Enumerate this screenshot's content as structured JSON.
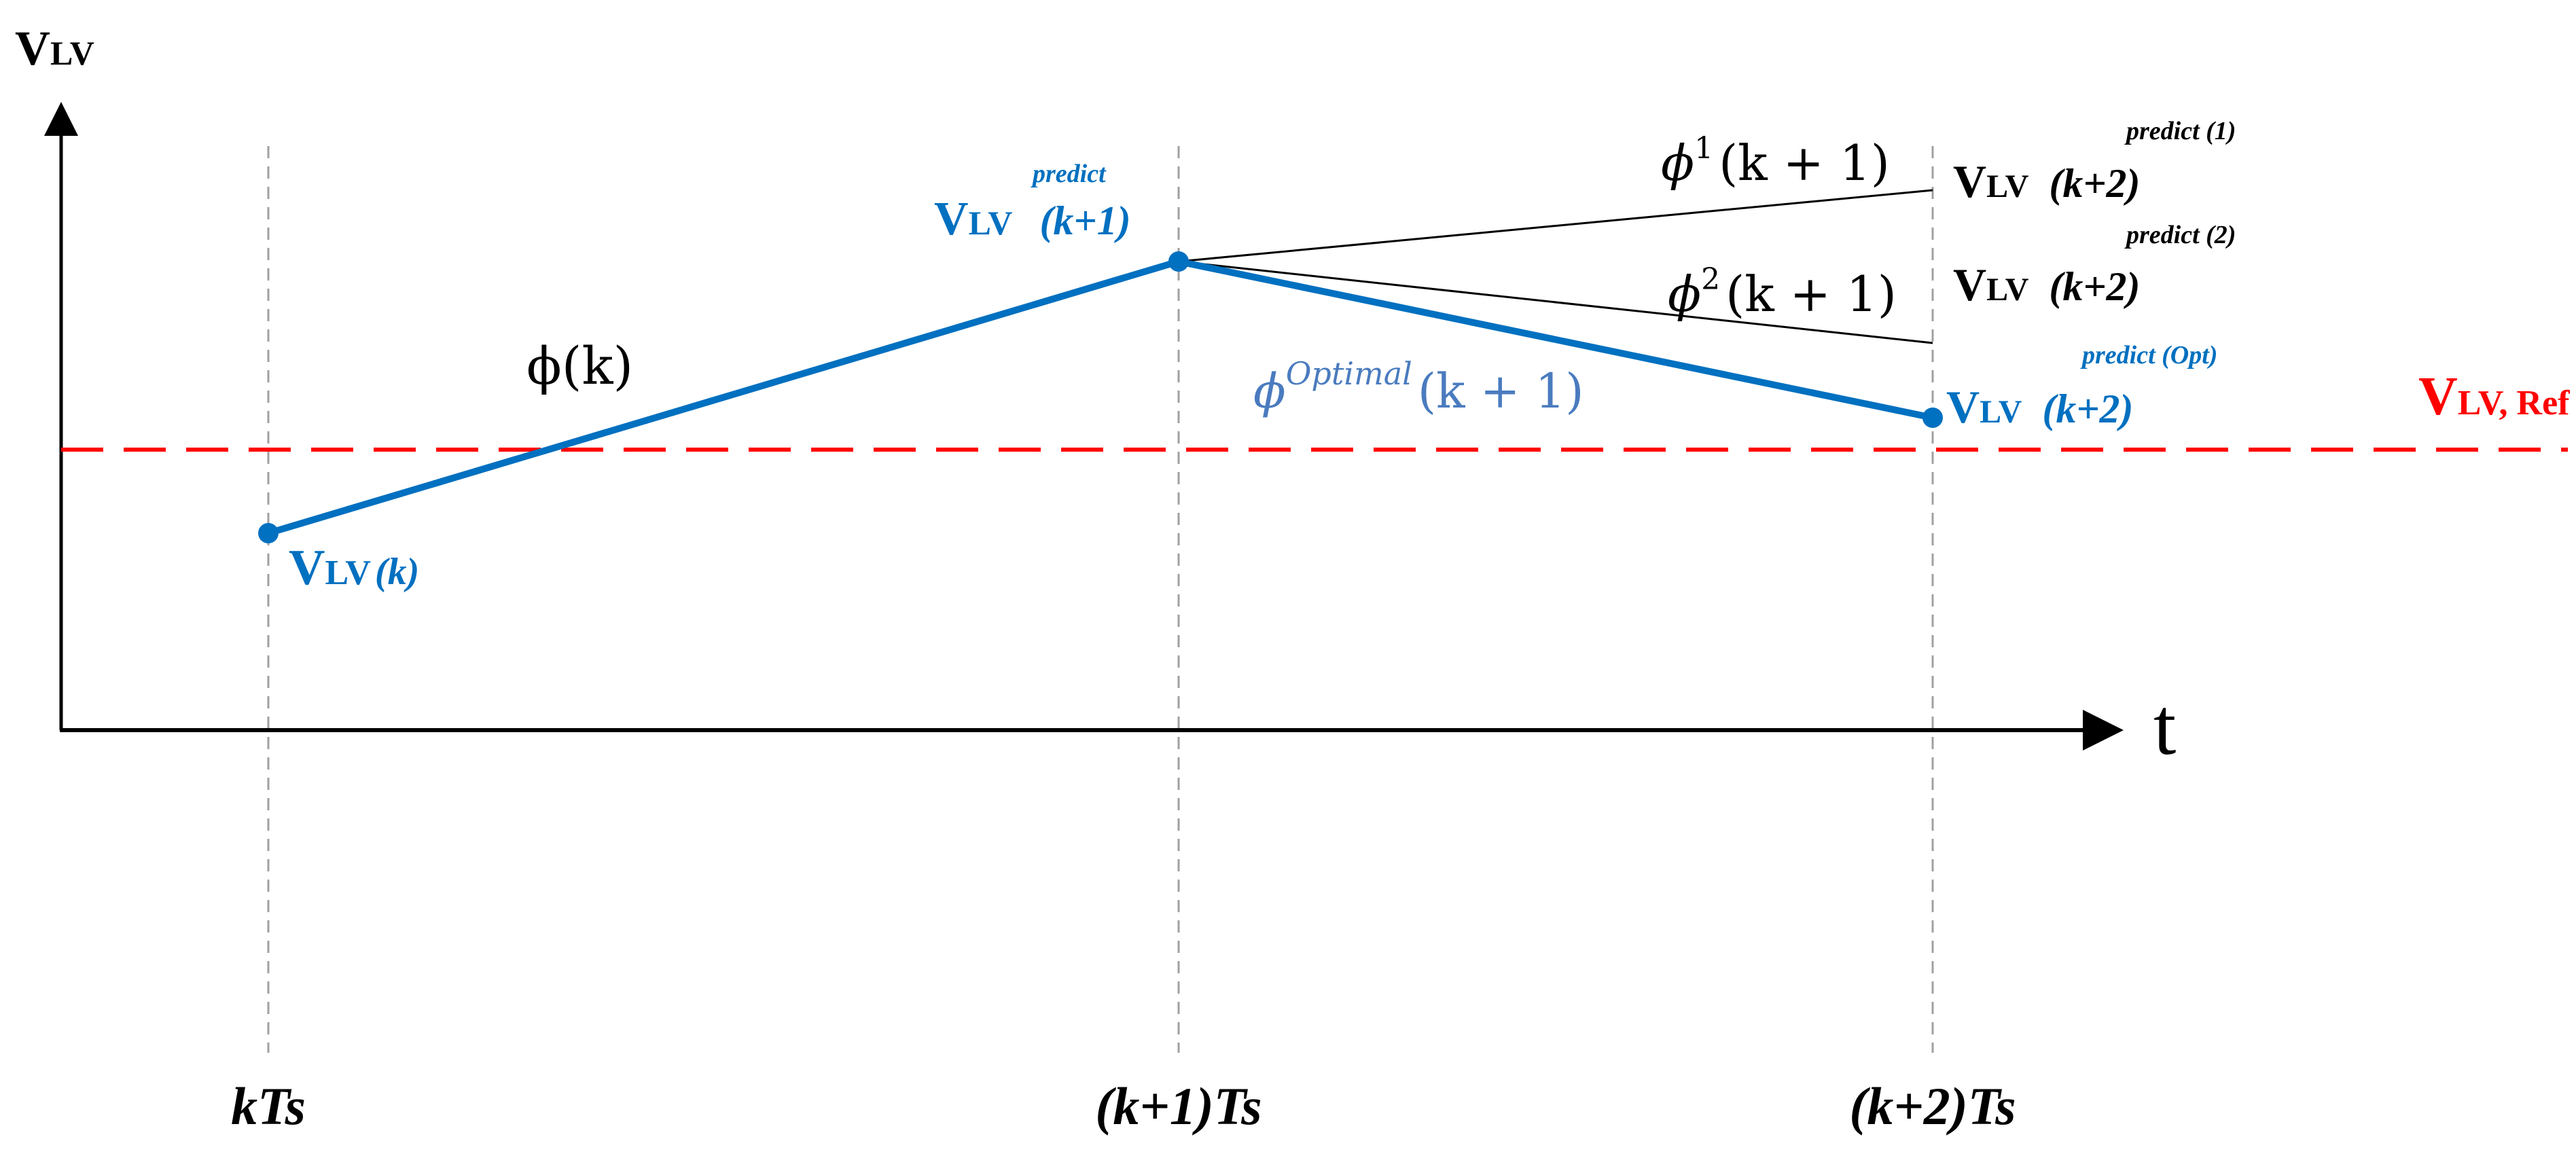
{
  "colors": {
    "axis": "#000000",
    "grid_dash": "#a0a0a0",
    "blue": "#0070c0",
    "light_blue": "#4a7bbf",
    "red": "#ff0000",
    "black": "#000000"
  },
  "axes": {
    "y_label_main": "V",
    "y_label_sub": "LV",
    "x_label": "t"
  },
  "time_ticks": [
    "kTs",
    "(k+1)Ts",
    "(k+2)Ts"
  ],
  "reference": {
    "label_main": "V",
    "label_sub": "LV, Ref"
  },
  "labels": {
    "vlv_k_main": "V",
    "vlv_k_sub": "LV",
    "vlv_k_arg": "(k)",
    "pred1_sup": "predict",
    "pred1_main": "V",
    "pred1_sub": "LV",
    "pred1_arg": "(k+1)",
    "cand1_sup": "predict (1)",
    "cand1_main": "V",
    "cand1_sub": "LV",
    "cand1_arg": "(k+2)",
    "cand2_sup": "predict (2)",
    "cand2_main": "V",
    "cand2_sub": "LV",
    "cand2_arg": "(k+2)",
    "opt_sup": "predict (Opt)",
    "opt_main": "V",
    "opt_sub": "LV",
    "opt_arg": "(k+2)"
  },
  "switching_states": {
    "phi_k": "ϕ(k)",
    "phi1_base": "ϕ",
    "phi1_sup": "1",
    "phi1_arg": "(k + 1)",
    "phi2_base": "ϕ",
    "phi2_sup": "2",
    "phi2_arg": "(k + 1)",
    "phiopt_base": "ϕ",
    "phiopt_sup": "Optimal",
    "phiopt_arg": "(k + 1)"
  }
}
